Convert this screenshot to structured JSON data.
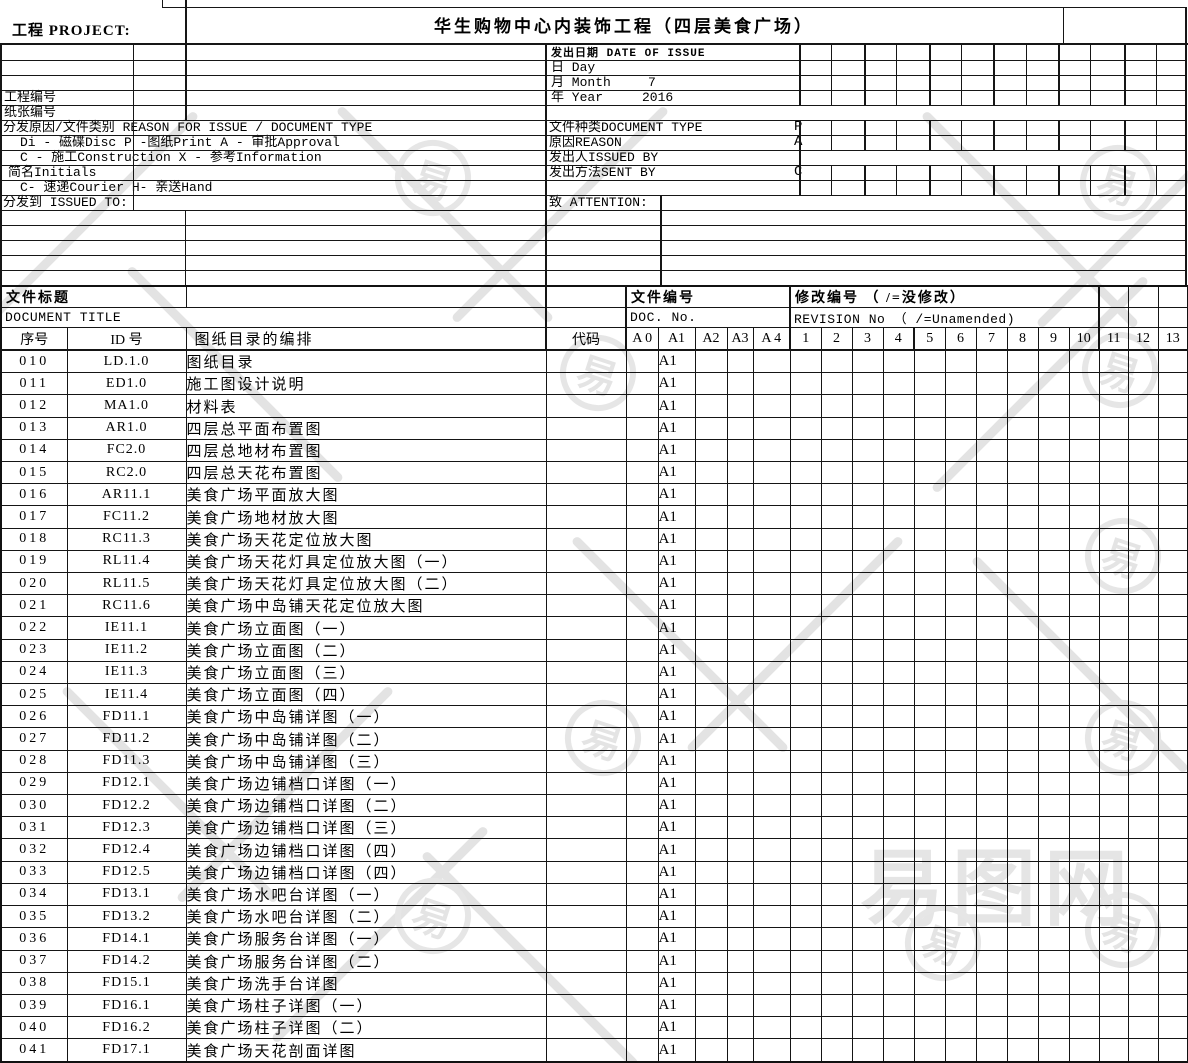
{
  "project": {
    "label": "工程 PROJECT:",
    "title": "华生购物中心内装饰工程（四层美食广场）"
  },
  "left": {
    "project_no": "工程编号",
    "paper_no": "纸张编号",
    "reason_header": "分发原因/文件类别 REASON FOR ISSUE / DOCUMENT TYPE",
    "reason_line1": "Di - 磁碟Disc  P -图纸Print   A - 审批Approval",
    "reason_line2": "C - 施工Construction  X - 参考Information",
    "initials": "简名Initials",
    "sent_line": "C- 速递Courier  H- 亲送Hand",
    "issued_to": "分发到 ISSUED TO:"
  },
  "issue": {
    "date_header": "发出日期 DATE OF ISSUE",
    "day_label": "日 Day",
    "day_value": "",
    "month_label": "月 Month",
    "month_value": "7",
    "year_label": "年 Year",
    "year_value": "2016",
    "doc_type_label": "文件种类DOCUMENT TYPE",
    "doc_type_value": "P",
    "reason_label": "原因REASON",
    "reason_value": "A",
    "issued_by_label": "发出人ISSUED BY",
    "issued_by_value": "",
    "sent_by_label": "发出方法SENT BY",
    "sent_by_value": "C",
    "attention_label": "致 ATTENTION:"
  },
  "table": {
    "title_cn": "文件标题",
    "title_en": "DOCUMENT TITLE",
    "doc_no_cn": "文件编号",
    "doc_no_en": "DOC. No.",
    "revision_cn": "修改编号 （ /=没修改）",
    "revision_en": "REVISION No （ /=Unamended)",
    "header": [
      "序号",
      "ID 号",
      "图纸目录的编排",
      "代码",
      "A 0",
      "A1",
      "A2",
      "A3",
      "A 4",
      "1",
      "2",
      "3",
      "4",
      "5",
      "6",
      "7",
      "8",
      "9",
      "10",
      "11",
      "12",
      "13"
    ],
    "rows": [
      {
        "seq": "010",
        "id": "LD.1.0",
        "title": "图纸目录",
        "size": "A1"
      },
      {
        "seq": "011",
        "id": "ED1.0",
        "title": "施工图设计说明",
        "size": "A1"
      },
      {
        "seq": "012",
        "id": "MA1.0",
        "title": "材料表",
        "size": "A1"
      },
      {
        "seq": "013",
        "id": "AR1.0",
        "title": "四层总平面布置图",
        "size": "A1"
      },
      {
        "seq": "014",
        "id": "FC2.0",
        "title": "四层总地材布置图",
        "size": "A1"
      },
      {
        "seq": "015",
        "id": "RC2.0",
        "title": "四层总天花布置图",
        "size": "A1"
      },
      {
        "seq": "016",
        "id": "AR11.1",
        "title": "美食广场平面放大图",
        "size": "A1"
      },
      {
        "seq": "017",
        "id": "FC11.2",
        "title": "美食广场地材放大图",
        "size": "A1"
      },
      {
        "seq": "018",
        "id": "RC11.3",
        "title": "美食广场天花定位放大图",
        "size": "A1"
      },
      {
        "seq": "019",
        "id": "RL11.4",
        "title": "美食广场天花灯具定位放大图（一）",
        "size": "A1"
      },
      {
        "seq": "020",
        "id": "RL11.5",
        "title": "美食广场天花灯具定位放大图（二）",
        "size": "A1"
      },
      {
        "seq": "021",
        "id": "RC11.6",
        "title": "美食广场中岛铺天花定位放大图",
        "size": "A1"
      },
      {
        "seq": "022",
        "id": "IE11.1",
        "title": "美食广场立面图（一）",
        "size": "A1"
      },
      {
        "seq": "023",
        "id": "IE11.2",
        "title": "美食广场立面图（二）",
        "size": "A1"
      },
      {
        "seq": "024",
        "id": "IE11.3",
        "title": "美食广场立面图（三）",
        "size": "A1"
      },
      {
        "seq": "025",
        "id": "IE11.4",
        "title": "美食广场立面图（四）",
        "size": "A1"
      },
      {
        "seq": "026",
        "id": "FD11.1",
        "title": "美食广场中岛铺详图（一）",
        "size": "A1"
      },
      {
        "seq": "027",
        "id": "FD11.2",
        "title": "美食广场中岛铺详图（二）",
        "size": "A1"
      },
      {
        "seq": "028",
        "id": "FD11.3",
        "title": "美食广场中岛铺详图（三）",
        "size": "A1"
      },
      {
        "seq": "029",
        "id": "FD12.1",
        "title": "美食广场边铺档口详图（一）",
        "size": "A1"
      },
      {
        "seq": "030",
        "id": "FD12.2",
        "title": "美食广场边铺档口详图（二）",
        "size": "A1"
      },
      {
        "seq": "031",
        "id": "FD12.3",
        "title": "美食广场边铺档口详图（三）",
        "size": "A1"
      },
      {
        "seq": "032",
        "id": "FD12.4",
        "title": "美食广场边铺档口详图（四）",
        "size": "A1"
      },
      {
        "seq": "033",
        "id": "FD12.5",
        "title": "美食广场边铺档口详图（四）",
        "size": "A1"
      },
      {
        "seq": "034",
        "id": "FD13.1",
        "title": "美食广场水吧台详图（一）",
        "size": "A1"
      },
      {
        "seq": "035",
        "id": "FD13.2",
        "title": "美食广场水吧台详图（二）",
        "size": "A1"
      },
      {
        "seq": "036",
        "id": "FD14.1",
        "title": "美食广场服务台详图（一）",
        "size": "A1"
      },
      {
        "seq": "037",
        "id": "FD14.2",
        "title": "美食广场服务台详图（二）",
        "size": "A1"
      },
      {
        "seq": "038",
        "id": "FD15.1",
        "title": "美食广场洗手台详图",
        "size": "A1"
      },
      {
        "seq": "039",
        "id": "FD16.1",
        "title": "美食广场柱子详图（一）",
        "size": "A1"
      },
      {
        "seq": "040",
        "id": "FD16.2",
        "title": "美食广场柱子详图（二）",
        "size": "A1"
      },
      {
        "seq": "041",
        "id": "FD17.1",
        "title": "美食广场天花剖面详图",
        "size": "A1"
      }
    ]
  },
  "watermark": {
    "site_text": "易图网",
    "stamp_glyph": "易"
  },
  "colors": {
    "line": "#161616",
    "background": "#ffffff",
    "watermark": "#cfcfcf"
  }
}
